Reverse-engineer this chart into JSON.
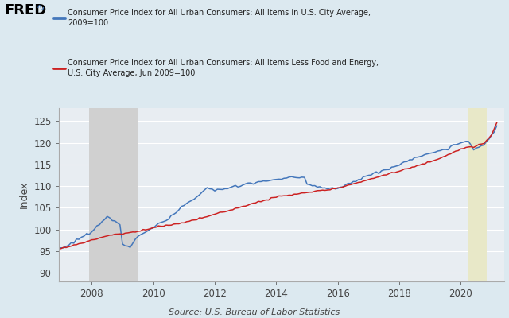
{
  "ylabel": "Index",
  "source": "Source: U.S. Bureau of Labor Statistics",
  "bg_outer": "#dce9f0",
  "bg_plot": "#e8edf2",
  "recession1_start": 2007.917,
  "recession1_end": 2009.5,
  "recession2_start": 2020.25,
  "recession2_end": 2020.833,
  "ylim": [
    88,
    128
  ],
  "yticks": [
    90,
    95,
    100,
    105,
    110,
    115,
    120,
    125
  ],
  "xmin": 2006.92,
  "xmax": 2021.4,
  "xticks": [
    2008,
    2010,
    2012,
    2014,
    2016,
    2018,
    2020
  ],
  "line_cpi_color": "#4477bb",
  "line_core_color": "#cc2222",
  "legend1": "Consumer Price Index for All Urban Consumers: All Items in U.S. City Average,\n2009=100",
  "legend2": "Consumer Price Index for All Urban Consumers: All Items Less Food and Energy,\nU.S. City Average, Jun 2009=100",
  "fred_text": "FRED",
  "recession_color": "#d0d0d0",
  "recession2_color": "#e8e8c8",
  "grid_color": "#ffffff",
  "tick_label_color": "#444444",
  "axis_label_color": "#444444"
}
